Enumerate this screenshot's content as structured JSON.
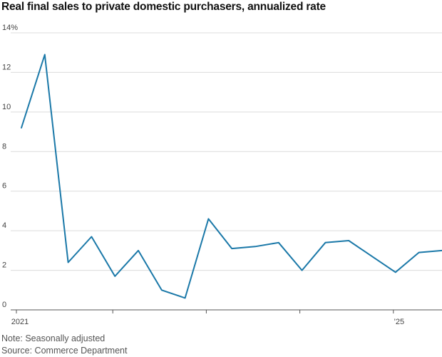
{
  "chart_data": {
    "type": "line",
    "title": "Real final sales to private domestic purchasers, annualized rate",
    "xlabel": "",
    "ylabel": "",
    "ylim": [
      0,
      14
    ],
    "y_ticks": [
      0,
      2,
      4,
      6,
      8,
      10,
      12,
      14
    ],
    "y_tick_labels": [
      "0",
      "2",
      "4",
      "6",
      "8",
      "10",
      "12",
      "14%"
    ],
    "x_tick_labels": [
      "2021",
      "’25"
    ],
    "x_tick_label_quarters": [
      "2021-Q1",
      "2025-Q1"
    ],
    "grid": true,
    "series": [
      {
        "name": "Real final sales to private domestic purchasers",
        "color": "#1a78a8",
        "x": [
          "2021-Q1",
          "2021-Q2",
          "2021-Q3",
          "2021-Q4",
          "2022-Q1",
          "2022-Q2",
          "2022-Q3",
          "2022-Q4",
          "2023-Q1",
          "2023-Q2",
          "2023-Q3",
          "2023-Q4",
          "2024-Q1",
          "2024-Q2",
          "2024-Q3",
          "2024-Q4",
          "2025-Q1",
          "2025-Q2",
          "2025-Q3"
        ],
        "values": [
          9.2,
          12.9,
          2.4,
          3.7,
          1.7,
          3.0,
          1.0,
          0.6,
          4.6,
          3.1,
          3.2,
          3.4,
          2.0,
          3.4,
          3.5,
          2.7,
          1.9,
          2.9,
          3.0
        ]
      }
    ]
  },
  "notes": {
    "note": "Note: Seasonally adjusted",
    "source": "Source: Commerce Department"
  }
}
